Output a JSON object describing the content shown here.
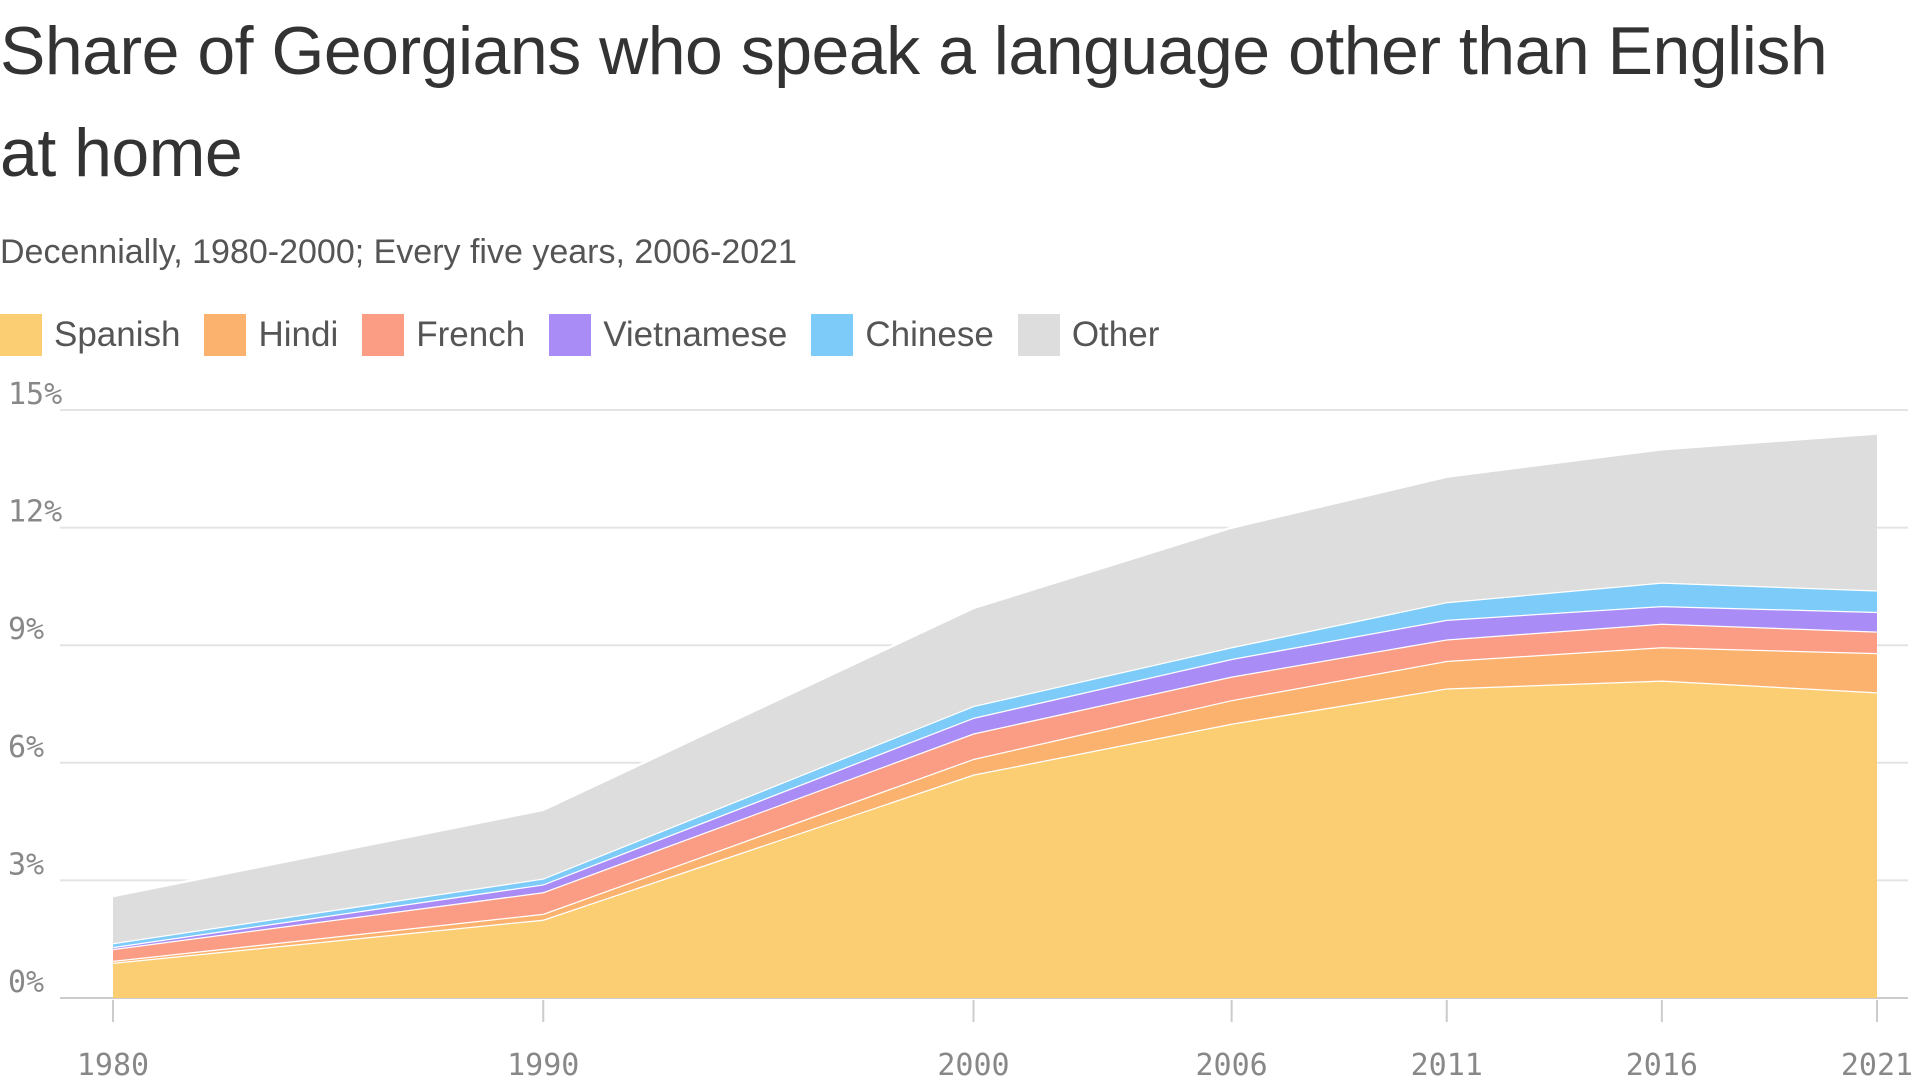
{
  "chart_data": {
    "type": "area",
    "stacked": true,
    "title": "Share of Georgians who speak a language other than English at home",
    "subtitle": "Decennially, 1980-2000; Every five years, 2006-2021",
    "x": [
      "1980",
      "1990",
      "2000",
      "2006",
      "2011",
      "2016",
      "2021"
    ],
    "x_numeric": [
      1980,
      1990,
      2000,
      2006,
      2011,
      2016,
      2021
    ],
    "ylim": [
      0,
      15
    ],
    "yticks": [
      "0%",
      "3%",
      "6%",
      "9%",
      "12%",
      "15%"
    ],
    "ytick_values": [
      0,
      3,
      6,
      9,
      12,
      15
    ],
    "grid": true,
    "legend_position": "top-left",
    "series": [
      {
        "name": "Spanish",
        "color": "#fcce74",
        "values": [
          0.9,
          2.0,
          5.7,
          7.0,
          7.9,
          8.1,
          7.8
        ]
      },
      {
        "name": "Hindi",
        "color": "#fbb26f",
        "values": [
          0.05,
          0.15,
          0.4,
          0.6,
          0.7,
          0.85,
          1.0
        ]
      },
      {
        "name": "French",
        "color": "#fb9c84",
        "values": [
          0.3,
          0.55,
          0.65,
          0.6,
          0.55,
          0.6,
          0.55
        ]
      },
      {
        "name": "Vietnamese",
        "color": "#a98cf5",
        "values": [
          0.05,
          0.2,
          0.4,
          0.45,
          0.5,
          0.45,
          0.5
        ]
      },
      {
        "name": "Chinese",
        "color": "#7dcbf9",
        "values": [
          0.1,
          0.15,
          0.3,
          0.3,
          0.45,
          0.6,
          0.55
        ]
      },
      {
        "name": "Other",
        "color": "#dcdddc",
        "values": [
          1.2,
          1.75,
          2.5,
          3.05,
          3.2,
          3.4,
          4.0
        ]
      }
    ]
  }
}
